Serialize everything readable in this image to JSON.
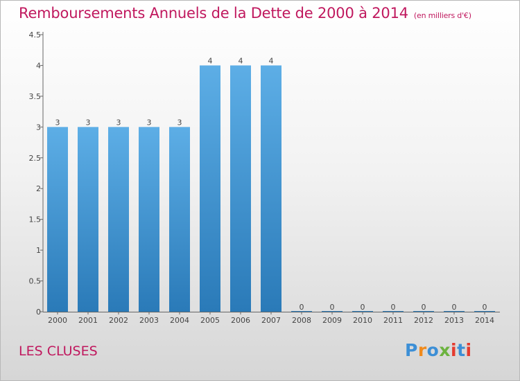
{
  "header": {
    "title": "Remboursements Annuels de la Dette de 2000 à 2014",
    "unit": "(en milliers d'€)"
  },
  "footer": {
    "commune": "LES CLUSES",
    "logo": "Proxiti"
  },
  "colors": {
    "title": "#c0185e",
    "bar_top": "#5daee6",
    "bar_bottom": "#2a7ab8",
    "axis": "#666666",
    "logo": [
      "#3c8fd6",
      "#f08a1c",
      "#3c8fd6",
      "#6cb33f",
      "#e53b2f",
      "#3c8fd6",
      "#e53b2f"
    ]
  },
  "chart_data": {
    "type": "bar",
    "title": "Remboursements Annuels de la Dette de 2000 à 2014",
    "xlabel": "",
    "ylabel": "",
    "categories": [
      "2000",
      "2001",
      "2002",
      "2003",
      "2004",
      "2005",
      "2006",
      "2007",
      "2008",
      "2009",
      "2010",
      "2011",
      "2012",
      "2013",
      "2014"
    ],
    "values": [
      3,
      3,
      3,
      3,
      3,
      4,
      4,
      4,
      0,
      0,
      0,
      0,
      0,
      0,
      0
    ],
    "data_labels": [
      "3",
      "3",
      "3",
      "3",
      "3",
      "4",
      "4",
      "4",
      "0",
      "0",
      "0",
      "0",
      "0",
      "0",
      "0"
    ],
    "ylim": [
      0,
      4.5
    ],
    "yticks": [
      0,
      0.5,
      1,
      1.5,
      2,
      2.5,
      3,
      3.5,
      4,
      4.5
    ],
    "ytick_labels": [
      "0",
      "0.5",
      "1",
      "1.5",
      "2",
      "2.5",
      "3",
      "3.5",
      "4",
      "4.5"
    ],
    "grid": false,
    "legend": "none"
  }
}
